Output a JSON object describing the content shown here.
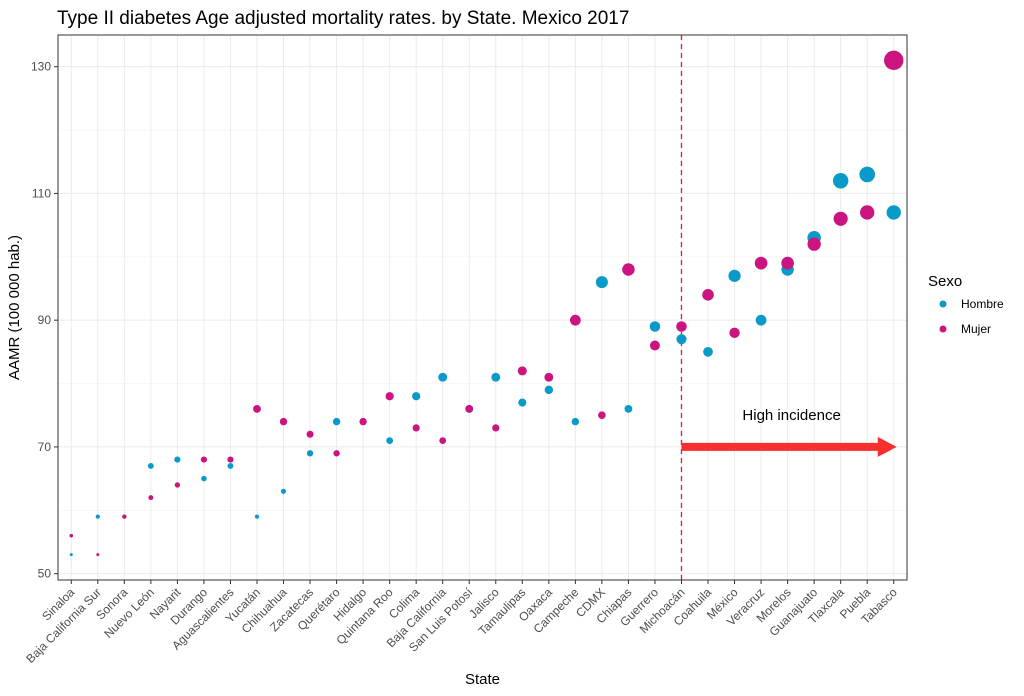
{
  "colors": {
    "Hombre": "#0a9ac9",
    "Mujer": "#cb1480",
    "arrow": "#f7302f",
    "vline": "#e41a1c"
  },
  "legend": {
    "title": "Sexo",
    "items": [
      "Hombre",
      "Mujer"
    ]
  },
  "chart_data": {
    "type": "scatter",
    "title": "Type II diabetes Age adjusted mortality rates.  by State. Mexico 2017",
    "xlabel": "State",
    "ylabel": "AAMR (100 000 hab.)",
    "ylim": [
      49,
      135
    ],
    "yticks": [
      50,
      70,
      90,
      110,
      130
    ],
    "grid": true,
    "legend_position": "right",
    "categories": [
      "Sinaloa",
      "Baja California Sur",
      "Sonora",
      "Nuevo León",
      "Nayarit",
      "Durango",
      "Aguascalientes",
      "Yucatán",
      "Chihuahua",
      "Zacatecas",
      "Querétaro",
      "Hidalgo",
      "Quintana Roo",
      "Colima",
      "Baja California",
      "San Luis Potosí",
      "Jalisco",
      "Tamaulipas",
      "Oaxaca",
      "Campeche",
      "CDMX",
      "Chiapas",
      "Guerrero",
      "Michoacán",
      "Coahuila",
      "México",
      "Veracruz",
      "Morelos",
      "Guanajuato",
      "Tlaxcala",
      "Puebla",
      "Tabasco"
    ],
    "series": [
      {
        "name": "Hombre",
        "values": [
          53,
          59,
          59,
          67,
          68,
          65,
          67,
          59,
          63,
          69,
          74,
          null,
          71,
          78,
          81,
          76,
          81,
          77,
          79,
          74,
          96,
          76,
          89,
          87,
          85,
          97,
          90,
          98,
          103,
          112,
          113,
          107
        ]
      },
      {
        "name": "Mujer",
        "values": [
          56,
          53,
          59,
          62,
          64,
          68,
          68,
          76,
          74,
          72,
          69,
          74,
          78,
          73,
          71,
          76,
          73,
          82,
          81,
          90,
          75,
          98,
          86,
          89,
          94,
          88,
          99,
          99,
          102,
          106,
          107,
          131
        ]
      }
    ],
    "reference_line": {
      "category": "Michoacán"
    },
    "annotations": [
      {
        "text": "High incidence",
        "arrow_from": "Michoacán",
        "arrow_to": "Tabasco",
        "arrow_y": 70
      }
    ]
  }
}
